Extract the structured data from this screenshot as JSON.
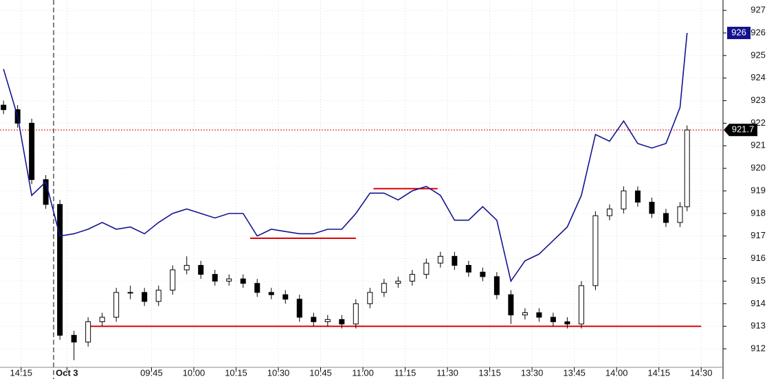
{
  "chart_data": {
    "type": "candlestick",
    "x": [
      -3,
      -1,
      1,
      3,
      5,
      7,
      9,
      11,
      13,
      15,
      17,
      19,
      21,
      23,
      25,
      27,
      29,
      31,
      33,
      35,
      37,
      39,
      41,
      43,
      45,
      47,
      49,
      51,
      53,
      55,
      57,
      59,
      61,
      63,
      65,
      67,
      69,
      71,
      73,
      75,
      77,
      79,
      81,
      83,
      85,
      87,
      89,
      91,
      93,
      94
    ],
    "open": [
      922.8,
      922.6,
      922.0,
      919.5,
      918.4,
      912.6,
      912.3,
      913.2,
      913.4,
      914.5,
      914.5,
      914.1,
      914.6,
      915.5,
      915.7,
      915.3,
      915.0,
      915.1,
      914.9,
      914.5,
      914.4,
      914.2,
      913.4,
      913.2,
      913.3,
      913.1,
      914.0,
      914.5,
      914.9,
      915.0,
      915.3,
      915.8,
      916.1,
      915.7,
      915.4,
      915.2,
      914.4,
      913.5,
      913.6,
      913.4,
      913.2,
      913.1,
      914.8,
      917.9,
      918.2,
      919.0,
      918.5,
      918.0,
      917.6,
      918.3
    ],
    "high": [
      923.0,
      922.8,
      922.2,
      919.7,
      918.6,
      912.8,
      913.4,
      913.6,
      914.7,
      914.8,
      914.7,
      914.8,
      915.7,
      916.1,
      915.9,
      915.5,
      915.3,
      915.3,
      915.1,
      914.7,
      914.6,
      914.4,
      913.6,
      913.5,
      913.5,
      914.2,
      914.7,
      915.1,
      915.2,
      915.5,
      916.0,
      916.3,
      916.3,
      915.9,
      915.6,
      915.4,
      914.6,
      913.8,
      913.8,
      913.6,
      913.4,
      915.0,
      918.1,
      918.4,
      919.2,
      919.2,
      918.7,
      918.2,
      918.5,
      921.9
    ],
    "low": [
      922.4,
      921.8,
      919.3,
      918.2,
      912.4,
      911.5,
      912.1,
      913.0,
      913.2,
      914.2,
      913.9,
      913.9,
      914.4,
      915.3,
      915.1,
      914.8,
      914.8,
      914.7,
      914.3,
      914.2,
      914.0,
      913.2,
      913.0,
      913.0,
      912.9,
      912.9,
      913.8,
      914.3,
      914.7,
      914.8,
      915.1,
      915.6,
      915.5,
      915.2,
      915.0,
      914.2,
      913.1,
      913.3,
      913.2,
      913.0,
      912.9,
      912.9,
      914.6,
      917.7,
      918.0,
      918.3,
      917.8,
      917.4,
      917.4,
      918.1
    ],
    "close": [
      922.6,
      922.0,
      919.5,
      918.4,
      912.6,
      912.3,
      913.2,
      913.4,
      914.5,
      914.5,
      914.1,
      914.6,
      915.5,
      915.7,
      915.3,
      915.0,
      915.1,
      914.9,
      914.5,
      914.4,
      914.2,
      913.4,
      913.2,
      913.3,
      913.1,
      914.0,
      914.5,
      914.9,
      915.0,
      915.3,
      915.8,
      916.1,
      915.7,
      915.4,
      915.2,
      914.4,
      913.5,
      913.6,
      913.4,
      913.2,
      913.1,
      914.8,
      917.9,
      918.2,
      919.0,
      918.5,
      918.0,
      917.6,
      918.3,
      921.7
    ],
    "up_color": "#ffffff",
    "down_color": "#000000",
    "overlay": {
      "color": "#12128f",
      "values": [
        924.4,
        922.3,
        918.8,
        919.4,
        917.0,
        917.1,
        917.3,
        917.6,
        917.3,
        917.4,
        917.1,
        917.6,
        918.0,
        918.2,
        918.0,
        917.8,
        918.0,
        918.0,
        917.0,
        917.3,
        917.2,
        917.1,
        917.1,
        917.3,
        917.3,
        918.0,
        918.9,
        918.9,
        918.6,
        919.0,
        919.2,
        918.8,
        917.7,
        917.7,
        918.3,
        917.7,
        915.0,
        915.9,
        916.2,
        916.8,
        917.4,
        918.8,
        921.5,
        921.2,
        922.1,
        921.1,
        920.9,
        921.1,
        922.7,
        926.0
      ]
    },
    "reference_lines": [
      {
        "y": 913.0,
        "x": [
          9,
          96
        ]
      },
      {
        "y": 916.9,
        "x": [
          32,
          47
        ]
      },
      {
        "y": 919.1,
        "x": [
          49.5,
          58.6
        ]
      }
    ],
    "reference_color": "#e00000",
    "xlim": [
      -3.5,
      99.1
    ],
    "ylim": [
      911.18,
      927.46
    ],
    "xticks": [
      {
        "value": -0.5,
        "label": "14:15"
      },
      {
        "value": 6,
        "label": "Oct 3"
      },
      {
        "value": 18,
        "label": "09:45"
      },
      {
        "value": 24,
        "label": "10:00"
      },
      {
        "value": 30,
        "label": "10:15"
      },
      {
        "value": 36,
        "label": "10:30"
      },
      {
        "value": 42,
        "label": "10:45"
      },
      {
        "value": 48,
        "label": "11:00"
      },
      {
        "value": 54,
        "label": "11:15"
      },
      {
        "value": 60,
        "label": "11:30"
      },
      {
        "value": 66,
        "label": "13:15"
      },
      {
        "value": 72,
        "label": "13:30"
      },
      {
        "value": 78,
        "label": "13:45"
      },
      {
        "value": 84,
        "label": "14:00"
      },
      {
        "value": 90,
        "label": "14:15"
      },
      {
        "value": 96,
        "label": "14:30"
      }
    ],
    "yticks": [
      912,
      913,
      914,
      915,
      916,
      917,
      918,
      919,
      920,
      921,
      922,
      923,
      924,
      925,
      926,
      927
    ],
    "grid": true
  }
}
